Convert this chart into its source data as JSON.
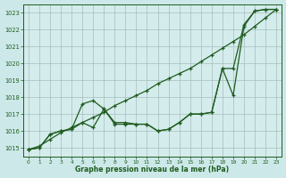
{
  "x": [
    0,
    1,
    2,
    3,
    4,
    5,
    6,
    7,
    8,
    9,
    10,
    11,
    12,
    13,
    14,
    15,
    16,
    17,
    18,
    19,
    20,
    21,
    22,
    23
  ],
  "line1": [
    1014.9,
    1015.0,
    1015.8,
    1016.0,
    1016.1,
    1017.6,
    1017.8,
    1017.3,
    1016.4,
    1016.4,
    1016.4,
    1016.4,
    1016.0,
    1016.1,
    1016.5,
    1017.0,
    1017.0,
    1017.1,
    1019.7,
    1018.1,
    1022.2,
    1023.1,
    1023.2,
    1023.2
  ],
  "line2": [
    1014.9,
    1015.1,
    1015.5,
    1015.9,
    1016.2,
    1016.5,
    1016.8,
    1017.1,
    1017.5,
    1017.8,
    1018.1,
    1018.4,
    1018.8,
    1019.1,
    1019.4,
    1019.7,
    1020.1,
    1020.5,
    1020.9,
    1021.3,
    1021.7,
    1022.2,
    1022.7,
    1023.2
  ],
  "line3": [
    1014.9,
    1015.0,
    1015.8,
    1016.0,
    1016.1,
    1016.5,
    1016.2,
    1017.3,
    1016.5,
    1016.5,
    1016.4,
    1016.4,
    1016.0,
    1016.1,
    1016.5,
    1017.0,
    1017.0,
    1017.1,
    1019.7,
    1019.7,
    1022.3,
    1023.1,
    1023.2,
    1023.2
  ],
  "ylim": [
    1014.5,
    1023.5
  ],
  "yticks": [
    1015,
    1016,
    1017,
    1018,
    1019,
    1020,
    1021,
    1022,
    1023
  ],
  "xticks": [
    0,
    1,
    2,
    3,
    4,
    5,
    6,
    7,
    8,
    9,
    10,
    11,
    12,
    13,
    14,
    15,
    16,
    17,
    18,
    19,
    20,
    21,
    22,
    23
  ],
  "xlabel": "Graphe pression niveau de la mer (hPa)",
  "line_color": "#1e5c1e",
  "bg_color": "#cce8e8",
  "grid_color": "#a0b8b8",
  "plot_bg": "#d4ecec",
  "spine_color": "#1e5c1e"
}
